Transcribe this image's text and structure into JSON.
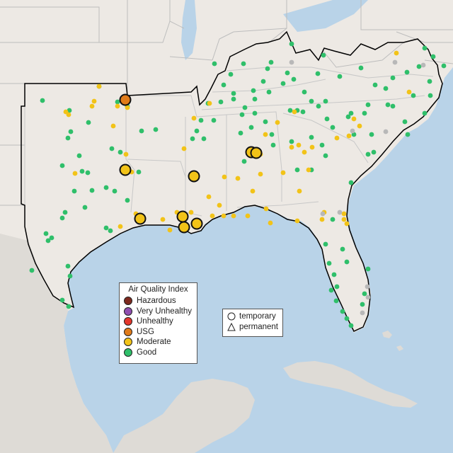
{
  "legend": {
    "title": "Air Quality Index",
    "categories": [
      {
        "label": "Hazardous",
        "color": "#7e2a1e"
      },
      {
        "label": "Very Unhealthy",
        "color": "#8f4fb0"
      },
      {
        "label": "Unhealthy",
        "color": "#e4372c"
      },
      {
        "label": "USG",
        "color": "#e07b1a"
      },
      {
        "label": "Moderate",
        "color": "#f2c318"
      },
      {
        "label": "Good",
        "color": "#2fbf6a"
      }
    ]
  },
  "monitor_types": {
    "temporary": "temporary",
    "permanent": "permanent"
  },
  "colors": {
    "water": "#b9d3e8",
    "land": "#ede9e4",
    "foreign_land": "#d9d6d2",
    "borders": "#bdbdbd",
    "region_outline": "#000000",
    "no_data": "#b8b8b8"
  }
}
